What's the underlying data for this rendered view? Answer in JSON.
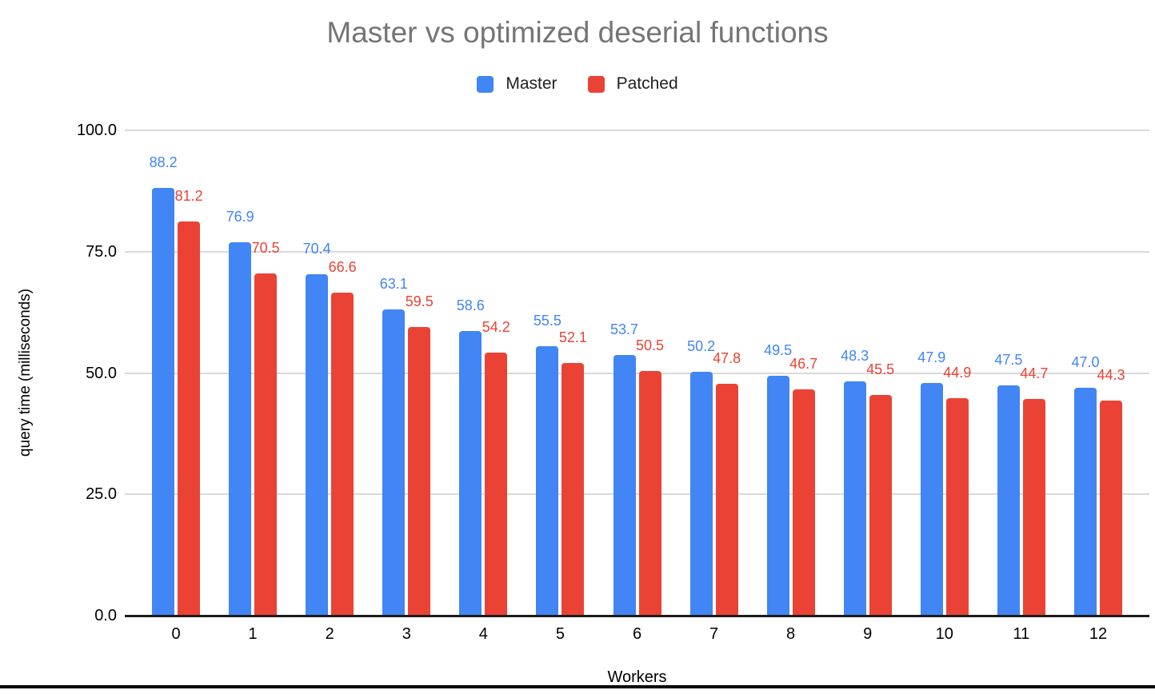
{
  "chart_data": {
    "type": "bar",
    "title": "Master vs optimized deserial functions",
    "xlabel": "Workers",
    "ylabel": "query time (milliseconds)",
    "categories": [
      "0",
      "1",
      "2",
      "3",
      "4",
      "5",
      "6",
      "7",
      "8",
      "9",
      "10",
      "11",
      "12"
    ],
    "series": [
      {
        "name": "Master",
        "color": "#4285F4",
        "values": [
          88.2,
          76.9,
          70.4,
          63.1,
          58.6,
          55.5,
          53.7,
          50.2,
          49.5,
          48.3,
          47.9,
          47.5,
          47.0
        ]
      },
      {
        "name": "Patched",
        "color": "#EA4335",
        "values": [
          81.2,
          70.5,
          66.6,
          59.5,
          54.2,
          52.1,
          50.5,
          47.8,
          46.7,
          45.5,
          44.9,
          44.7,
          44.3
        ]
      }
    ],
    "ylim": [
      0,
      100
    ],
    "yticks": [
      {
        "value": 0,
        "label": "0.0"
      },
      {
        "value": 25,
        "label": "25.0"
      },
      {
        "value": 50,
        "label": "50.0"
      },
      {
        "value": 75,
        "label": "75.0"
      },
      {
        "value": 100,
        "label": "100.0"
      }
    ],
    "legend_position": "top",
    "grid": "horizontal",
    "data_labels": true,
    "colors": {
      "title": "#757575",
      "gridline": "#d9d9d9",
      "axis_baseline": "#1c1c1c",
      "tick_labels": "#000000"
    }
  }
}
